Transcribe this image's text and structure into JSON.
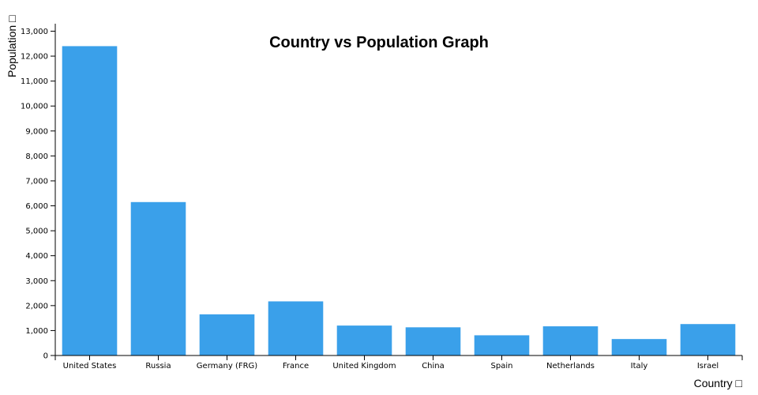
{
  "chart_data": {
    "type": "bar",
    "title": "Country vs Population Graph",
    "xlabel": "Country □",
    "ylabel": "Population □",
    "categories": [
      "United States",
      "Russia",
      "Germany (FRG)",
      "France",
      "United Kingdom",
      "China",
      "Spain",
      "Netherlands",
      "Italy",
      "Israel"
    ],
    "values": [
      12400,
      6150,
      1650,
      2170,
      1200,
      1130,
      810,
      1170,
      660,
      1260
    ],
    "ylim": [
      0,
      13300
    ],
    "yticks": [
      0,
      1000,
      2000,
      3000,
      4000,
      5000,
      6000,
      7000,
      8000,
      9000,
      10000,
      11000,
      12000,
      13000
    ],
    "ytick_labels": [
      "0",
      "1,000",
      "2,000",
      "3,000",
      "4,000",
      "5,000",
      "6,000",
      "7,000",
      "8,000",
      "9,000",
      "10,000",
      "11,000",
      "12,000",
      "13,000"
    ],
    "grid": false,
    "legend": "none",
    "bar_color": "#3aa0ea"
  }
}
